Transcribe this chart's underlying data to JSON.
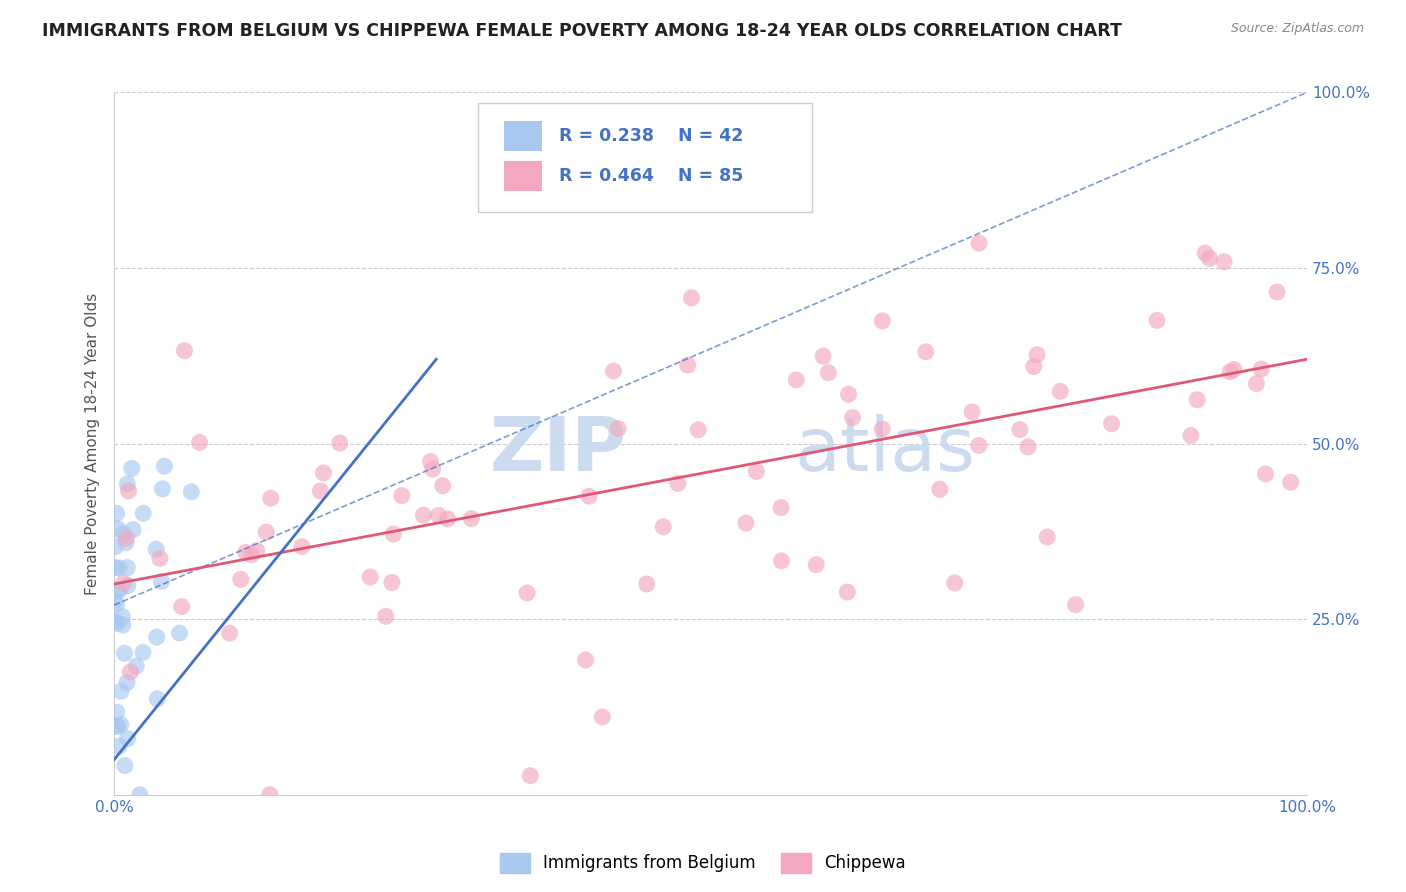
{
  "title": "IMMIGRANTS FROM BELGIUM VS CHIPPEWA FEMALE POVERTY AMONG 18-24 YEAR OLDS CORRELATION CHART",
  "source": "Source: ZipAtlas.com",
  "ylabel": "Female Poverty Among 18-24 Year Olds",
  "legend_blue_R": "R = 0.238",
  "legend_blue_N": "N = 42",
  "legend_pink_R": "R = 0.464",
  "legend_pink_N": "N = 85",
  "legend_label_blue": "Immigrants from Belgium",
  "legend_label_pink": "Chippewa",
  "blue_color": "#A8C8F0",
  "pink_color": "#F4A8C0",
  "blue_line_color": "#4472C4",
  "pink_line_color": "#E05878",
  "watermark_zip": "ZIP",
  "watermark_atlas": "atlas",
  "watermark_color": "#C8D8F0",
  "xmin": 0,
  "xmax": 100,
  "ymin": 0,
  "ymax": 100,
  "grid_color": "#CCCCCC",
  "bg_color": "#FFFFFF",
  "title_color": "#222222",
  "axis_label_color": "#555555",
  "tick_color": "#4472C4",
  "blue_regline_solid": [
    [
      0,
      5
    ],
    [
      27,
      62
    ]
  ],
  "blue_regline_dashed": [
    [
      0,
      27
    ],
    [
      100,
      100
    ]
  ],
  "pink_regline": [
    [
      0,
      30
    ],
    [
      100,
      62
    ]
  ]
}
